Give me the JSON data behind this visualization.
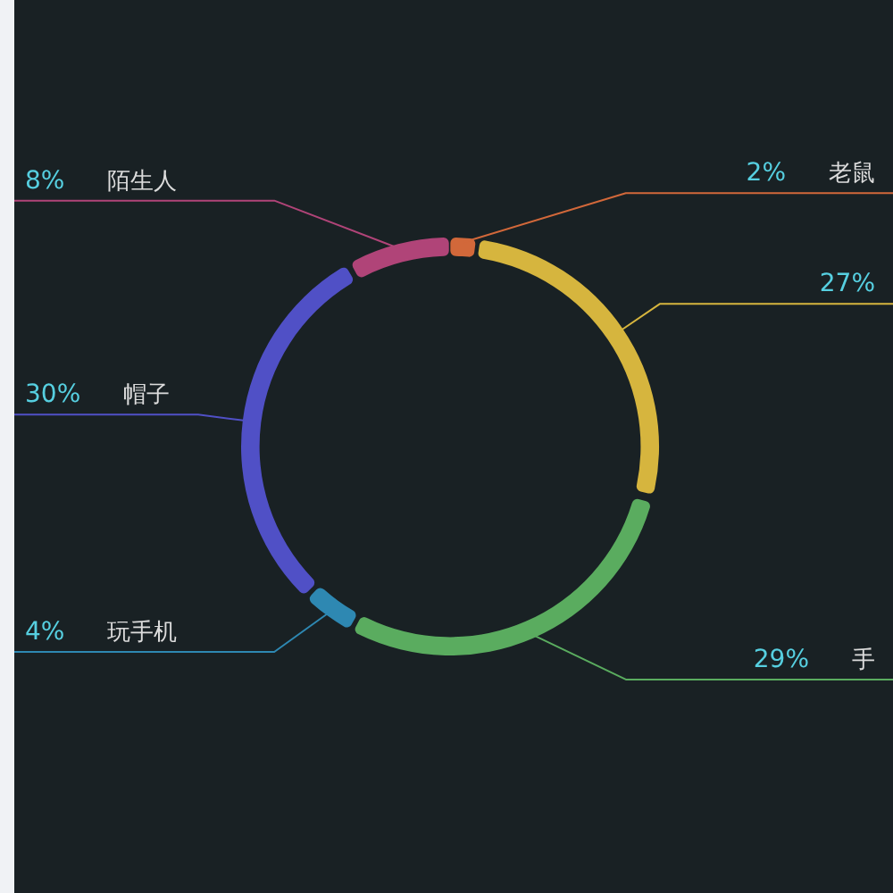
{
  "chart_data": {
    "type": "donut",
    "categories": [
      "老鼠",
      null,
      "手",
      "玩手机",
      "帽子",
      "陌生人"
    ],
    "values": [
      2,
      27,
      29,
      4,
      30,
      8
    ],
    "colors": [
      "#d2683a",
      "#d6b53e",
      "#5aac5f",
      "#2e88b2",
      "#5050c6",
      "#b04478"
    ],
    "value_labels": [
      "2%",
      "27%",
      "29%",
      "4%",
      "30%",
      "8%"
    ]
  }
}
